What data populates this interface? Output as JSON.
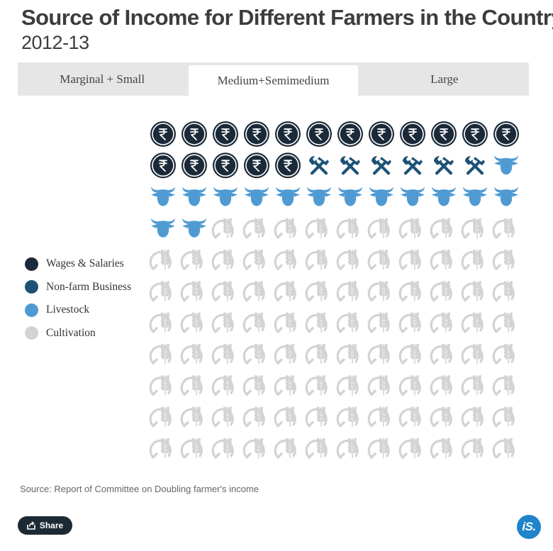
{
  "title": "Source of Income for Different Farmers in the Country,",
  "subtitle": "2012-13",
  "tabs": [
    {
      "label": "Marginal + Small",
      "active": false
    },
    {
      "label": "Medium+Semimedium",
      "active": true
    },
    {
      "label": "Large",
      "active": false
    }
  ],
  "source": "Source: Report of Committee on Doubling farmer's income",
  "share_label": "Share",
  "brand_label": "iS.",
  "colors": {
    "wages": "#1b2a38",
    "nonfarm": "#1d5276",
    "livestock": "#4f9ad3",
    "cultivation": "#d3d3d3"
  },
  "chart_data": {
    "type": "waffle",
    "total_units": 132,
    "columns": 12,
    "rows": 11,
    "series": [
      {
        "name": "Wages & Salaries",
        "units": 17,
        "color": "#1b2a38",
        "icon": "rupee-coin-icon"
      },
      {
        "name": "Non-farm Business",
        "units": 6,
        "color": "#1d5276",
        "icon": "hammer-wrench-icon"
      },
      {
        "name": "Livestock",
        "units": 15,
        "color": "#4f9ad3",
        "icon": "cow-head-icon"
      },
      {
        "name": "Cultivation",
        "units": 94,
        "color": "#d3d3d3",
        "icon": "wheat-sickle-icon"
      }
    ]
  }
}
